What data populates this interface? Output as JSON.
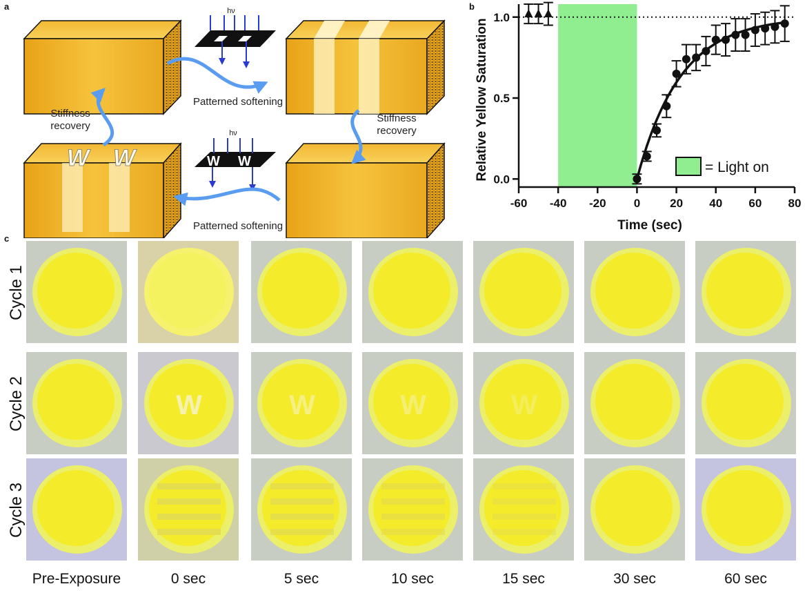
{
  "panel_a": {
    "letter": "a",
    "hv_top": "hν",
    "hv_bottom": "hν",
    "label_patterned_top": "Patterned softening",
    "label_patterned_bottom": "Patterned softening",
    "label_stiffness_left": "Stiffness\nrecovery",
    "label_stiffness_right": "Stiffness\nrecovery",
    "letter_w": "W",
    "colors": {
      "block_top": "#f7c93a",
      "block_front": "#f0b323",
      "block_side": "#e09a12",
      "arrow": "#5a9cf0"
    }
  },
  "panel_b": {
    "letter": "b"
  },
  "panel_c": {
    "letter": "c",
    "rows": [
      "Cycle 1",
      "Cycle 2",
      "Cycle 3"
    ],
    "columns": [
      "Pre-Exposure",
      "0 sec",
      "5 sec",
      "10 sec",
      "15 sec",
      "30 sec",
      "60 sec"
    ],
    "pattern_letter": "W",
    "colors": {
      "disc": "#f4ec2a",
      "rim": "#eef06a",
      "background": "#c9cdc0"
    }
  },
  "chart_data": {
    "type": "scatter",
    "ylabel": "Relative Yellow Saturation",
    "xlabel": "Time (sec)",
    "xlim": [
      -60,
      80
    ],
    "ylim": [
      -0.05,
      1.08
    ],
    "xticks": [
      -60,
      -40,
      -20,
      0,
      20,
      40,
      60,
      80
    ],
    "yticks": [
      0.0,
      0.5,
      1.0
    ],
    "ytick_labels": [
      "0.0",
      "0.5",
      "1.0"
    ],
    "reference_line_y": 1.0,
    "light_on_region": [
      -40,
      0
    ],
    "legend_text": "= Light on",
    "legend_color": "#90ee90",
    "series": [
      {
        "marker": "triangle",
        "x": [
          -55,
          -50,
          -45
        ],
        "y": [
          1.02,
          1.02,
          1.02
        ],
        "err": [
          0.06,
          0.06,
          0.07
        ]
      },
      {
        "marker": "circle",
        "x": [
          0,
          5,
          10,
          15,
          20,
          25,
          30,
          35,
          40,
          45,
          50,
          55,
          60,
          65,
          70,
          75
        ],
        "y": [
          0.0,
          0.14,
          0.3,
          0.45,
          0.65,
          0.74,
          0.75,
          0.79,
          0.86,
          0.86,
          0.89,
          0.89,
          0.92,
          0.93,
          0.94,
          0.96
        ],
        "err": [
          0.03,
          0.03,
          0.04,
          0.07,
          0.08,
          0.09,
          0.08,
          0.09,
          0.09,
          0.1,
          0.1,
          0.1,
          0.1,
          0.1,
          0.1,
          0.11
        ]
      }
    ],
    "fit": {
      "model": "1 - exp(-x/tau)",
      "tau": 22
    }
  }
}
